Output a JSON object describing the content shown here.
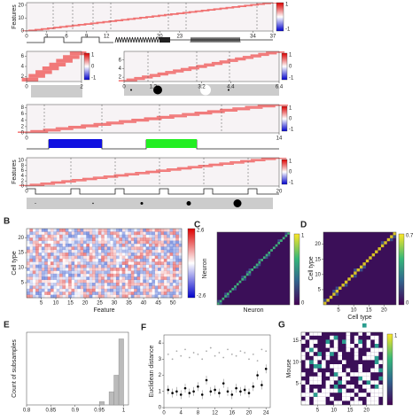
{
  "heat1": {
    "ylabel": "Features",
    "yticks": [
      0,
      10,
      20
    ],
    "ylim": [
      0,
      22
    ],
    "cbar": [
      1,
      -1
    ],
    "xticks": [
      0,
      3,
      6,
      9,
      12,
      20,
      23,
      34,
      37
    ],
    "xlim": [
      0,
      37
    ]
  },
  "heat2": {
    "yticks": [
      2,
      4,
      6
    ],
    "ylim": [
      1,
      7
    ],
    "cbar": [
      1,
      0,
      -1
    ],
    "xticks": [
      0,
      2
    ],
    "xlim": [
      0,
      2
    ]
  },
  "heat3": {
    "yticks": [
      2,
      4,
      6
    ],
    "ylim": [
      1,
      8
    ],
    "cbar": [
      1,
      0,
      -1
    ],
    "xticks": [
      0,
      1.2,
      3.2,
      4.4,
      6.4
    ],
    "xlim": [
      0,
      6.4
    ]
  },
  "heat4": {
    "yticks": [
      0,
      2,
      4,
      6,
      8
    ],
    "ylim": [
      0,
      9
    ],
    "cbar": [
      1,
      0,
      -1
    ],
    "xticks": [
      0,
      14
    ],
    "xlim": [
      0,
      14
    ]
  },
  "heat5": {
    "ylabel": "Features",
    "yticks": [
      0,
      2,
      4,
      6,
      8,
      10
    ],
    "ylim": [
      0,
      11
    ],
    "cbar": [
      1,
      0,
      -1
    ],
    "xticks": [
      0,
      20
    ],
    "xlim": [
      0,
      20
    ]
  },
  "B": {
    "letter": "B",
    "xlabel": "Feature",
    "ylabel": "Cell type",
    "xticks": [
      5,
      10,
      15,
      20,
      25,
      30,
      35,
      40,
      45,
      50
    ],
    "xlim": [
      0,
      53
    ],
    "yticks": [
      5,
      10,
      15,
      20
    ],
    "ylim": [
      0,
      23
    ],
    "cbar": [
      2.6,
      -2.6
    ]
  },
  "C": {
    "letter": "C",
    "xlabel": "Neuron",
    "ylabel": "Neuron",
    "cbar": [
      1,
      0
    ]
  },
  "D": {
    "letter": "D",
    "xlabel": "Cell type",
    "ylabel": "Cell type",
    "xticks": [
      5,
      10,
      15,
      20
    ],
    "xlim": [
      0,
      24
    ],
    "yticks": [
      5,
      10,
      15,
      20
    ],
    "ylim": [
      0,
      24
    ],
    "cbar": [
      0.7,
      0
    ]
  },
  "E": {
    "letter": "E",
    "ylabel": "Count of subsamples",
    "xticks": [
      0.8,
      0.85,
      0.9,
      0.95,
      1
    ],
    "xlim": [
      0.8,
      1.01
    ],
    "bins": [
      0.95,
      0.96,
      0.97,
      0.98,
      0.99,
      1.0
    ],
    "counts": [
      1,
      0,
      4,
      9,
      20
    ],
    "ylim": [
      0,
      22
    ]
  },
  "F": {
    "letter": "F",
    "ylabel": "Euclidean distance",
    "xticks": [
      0,
      4,
      8,
      12,
      16,
      20,
      24
    ],
    "xlim": [
      0,
      25
    ],
    "yticks": [
      0,
      1,
      2,
      3,
      4
    ],
    "ylim": [
      0,
      4.5
    ],
    "x": [
      1,
      2,
      3,
      4,
      5,
      6,
      7,
      8,
      9,
      10,
      11,
      12,
      13,
      14,
      15,
      16,
      17,
      18,
      19,
      20,
      21,
      22,
      23,
      24
    ],
    "series": [
      {
        "color": "#000000",
        "values": [
          1.1,
          0.9,
          1.0,
          0.8,
          1.2,
          0.9,
          1.0,
          1.3,
          0.8,
          1.7,
          1.0,
          1.1,
          0.9,
          1.5,
          1.0,
          0.8,
          1.2,
          1.0,
          1.1,
          0.9,
          1.3,
          2.0,
          1.4,
          2.4
        ]
      },
      {
        "color": "#aaaaaa",
        "values": [
          3.3,
          3.0,
          3.5,
          3.2,
          3.6,
          3.1,
          3.4,
          3.3,
          3.0,
          3.5,
          3.7,
          3.2,
          3.4,
          3.1,
          3.6,
          3.3,
          3.2,
          3.5,
          3.4,
          3.0,
          3.3,
          2.9,
          3.6,
          3.5
        ]
      }
    ]
  },
  "G": {
    "letter": "G",
    "ylabel": "Mouse",
    "xticks": [
      5,
      10,
      15,
      20
    ],
    "xlim": [
      0,
      25
    ],
    "yticks": [
      5,
      10,
      15
    ],
    "ylim": [
      0,
      17
    ],
    "cbar": [
      1
    ]
  }
}
